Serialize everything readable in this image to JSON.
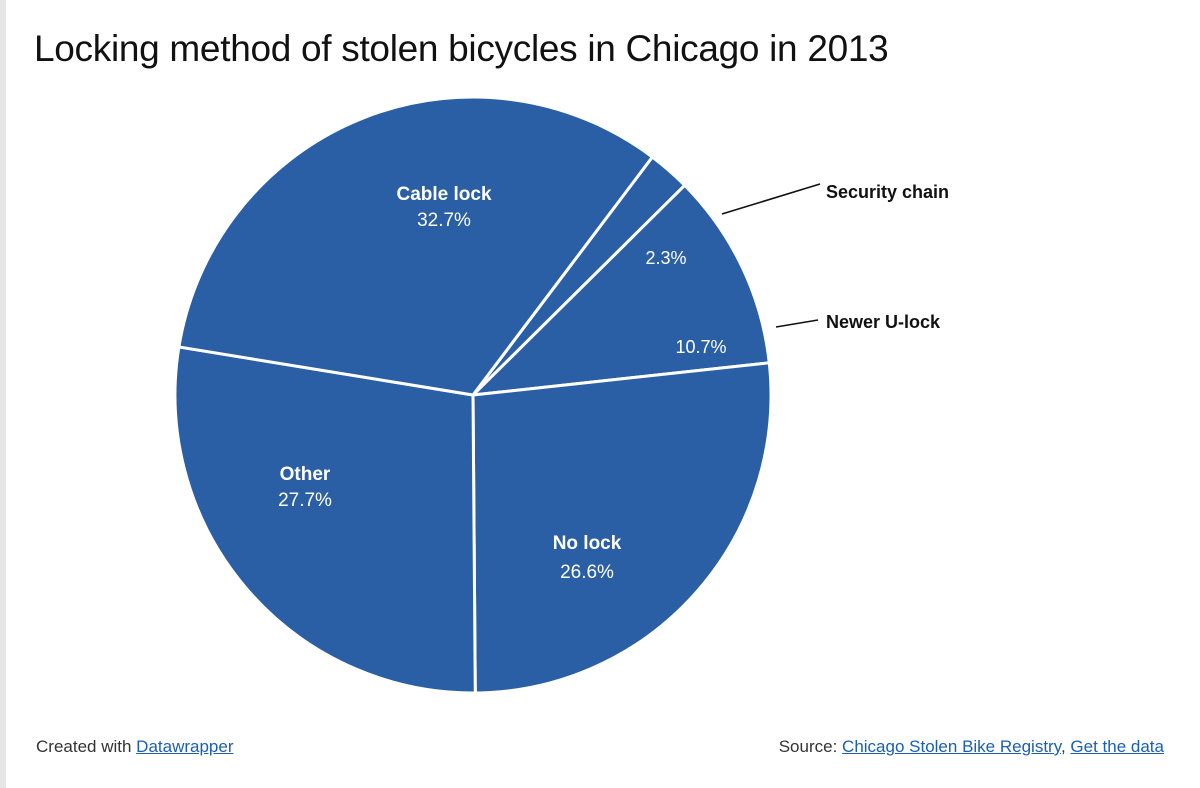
{
  "chart_data": {
    "type": "pie",
    "title": "Locking method of stolen bicycles in Chicago in 2013",
    "slices": [
      {
        "label": "Security chain",
        "value": 2.3,
        "display": "2.3%"
      },
      {
        "label": "Newer U-lock",
        "value": 10.7,
        "display": "10.7%"
      },
      {
        "label": "No lock",
        "value": 26.6,
        "display": "26.6%"
      },
      {
        "label": "Other",
        "value": 27.7,
        "display": "27.7%"
      },
      {
        "label": "Cable lock",
        "value": 32.7,
        "display": "32.7%"
      }
    ],
    "slice_color": "#2a5fa5",
    "separator_color": "#ffffff"
  },
  "footer": {
    "created_prefix": "Created with",
    "created_link": "Datawrapper",
    "source_prefix": "Source:",
    "source_link": "Chicago Stolen Bike Registry",
    "separator": ",",
    "data_link": "Get the data"
  }
}
